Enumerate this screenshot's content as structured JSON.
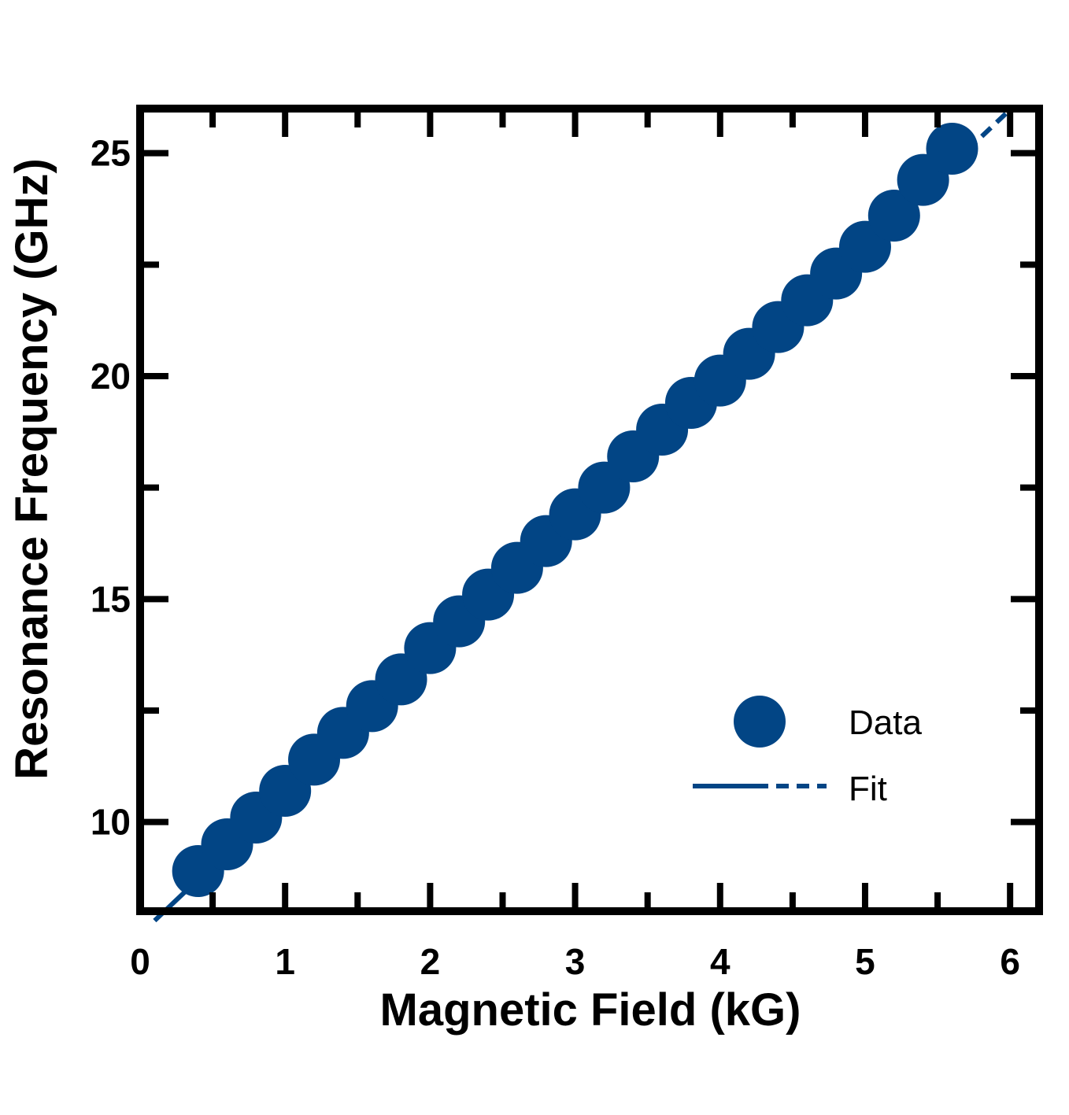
{
  "chart_data": {
    "type": "scatter",
    "xlabel": "Magnetic Field (kG)",
    "ylabel": "Resonance Frequency (GHz)",
    "xlim": [
      0,
      6.2
    ],
    "ylim": [
      8,
      26
    ],
    "x_ticks": [
      "0",
      "1",
      "2",
      "3",
      "4",
      "5",
      "6"
    ],
    "y_ticks": [
      "10",
      "15",
      "20",
      "25"
    ],
    "x_tick_values": [
      0,
      1,
      2,
      3,
      4,
      5,
      6
    ],
    "y_tick_values": [
      10,
      15,
      20,
      25
    ],
    "x_minor_step": 0.5,
    "y_minor_step": 2.5,
    "grid": false,
    "legend_placement": "lower-right",
    "color": "#024585",
    "series": [
      {
        "name": "Data",
        "kind": "markers",
        "x": [
          0.4,
          0.6,
          0.8,
          1.0,
          1.2,
          1.4,
          1.6,
          1.8,
          2.0,
          2.2,
          2.4,
          2.6,
          2.8,
          3.0,
          3.2,
          3.4,
          3.6,
          3.8,
          4.0,
          4.2,
          4.4,
          4.6,
          4.8,
          5.0,
          5.2,
          5.4,
          5.6
        ],
        "y": [
          8.9,
          9.5,
          10.1,
          10.7,
          11.4,
          12.0,
          12.6,
          13.2,
          13.9,
          14.5,
          15.1,
          15.7,
          16.3,
          16.9,
          17.5,
          18.2,
          18.8,
          19.4,
          19.9,
          20.5,
          21.1,
          21.7,
          22.3,
          22.9,
          23.6,
          24.4,
          25.1
        ]
      },
      {
        "name": "Fit",
        "kind": "line",
        "slope": 3.083,
        "intercept": 7.48,
        "x_solid": [
          0.1,
          5.6
        ],
        "x_dashed": [
          5.6,
          6.0
        ]
      }
    ]
  }
}
